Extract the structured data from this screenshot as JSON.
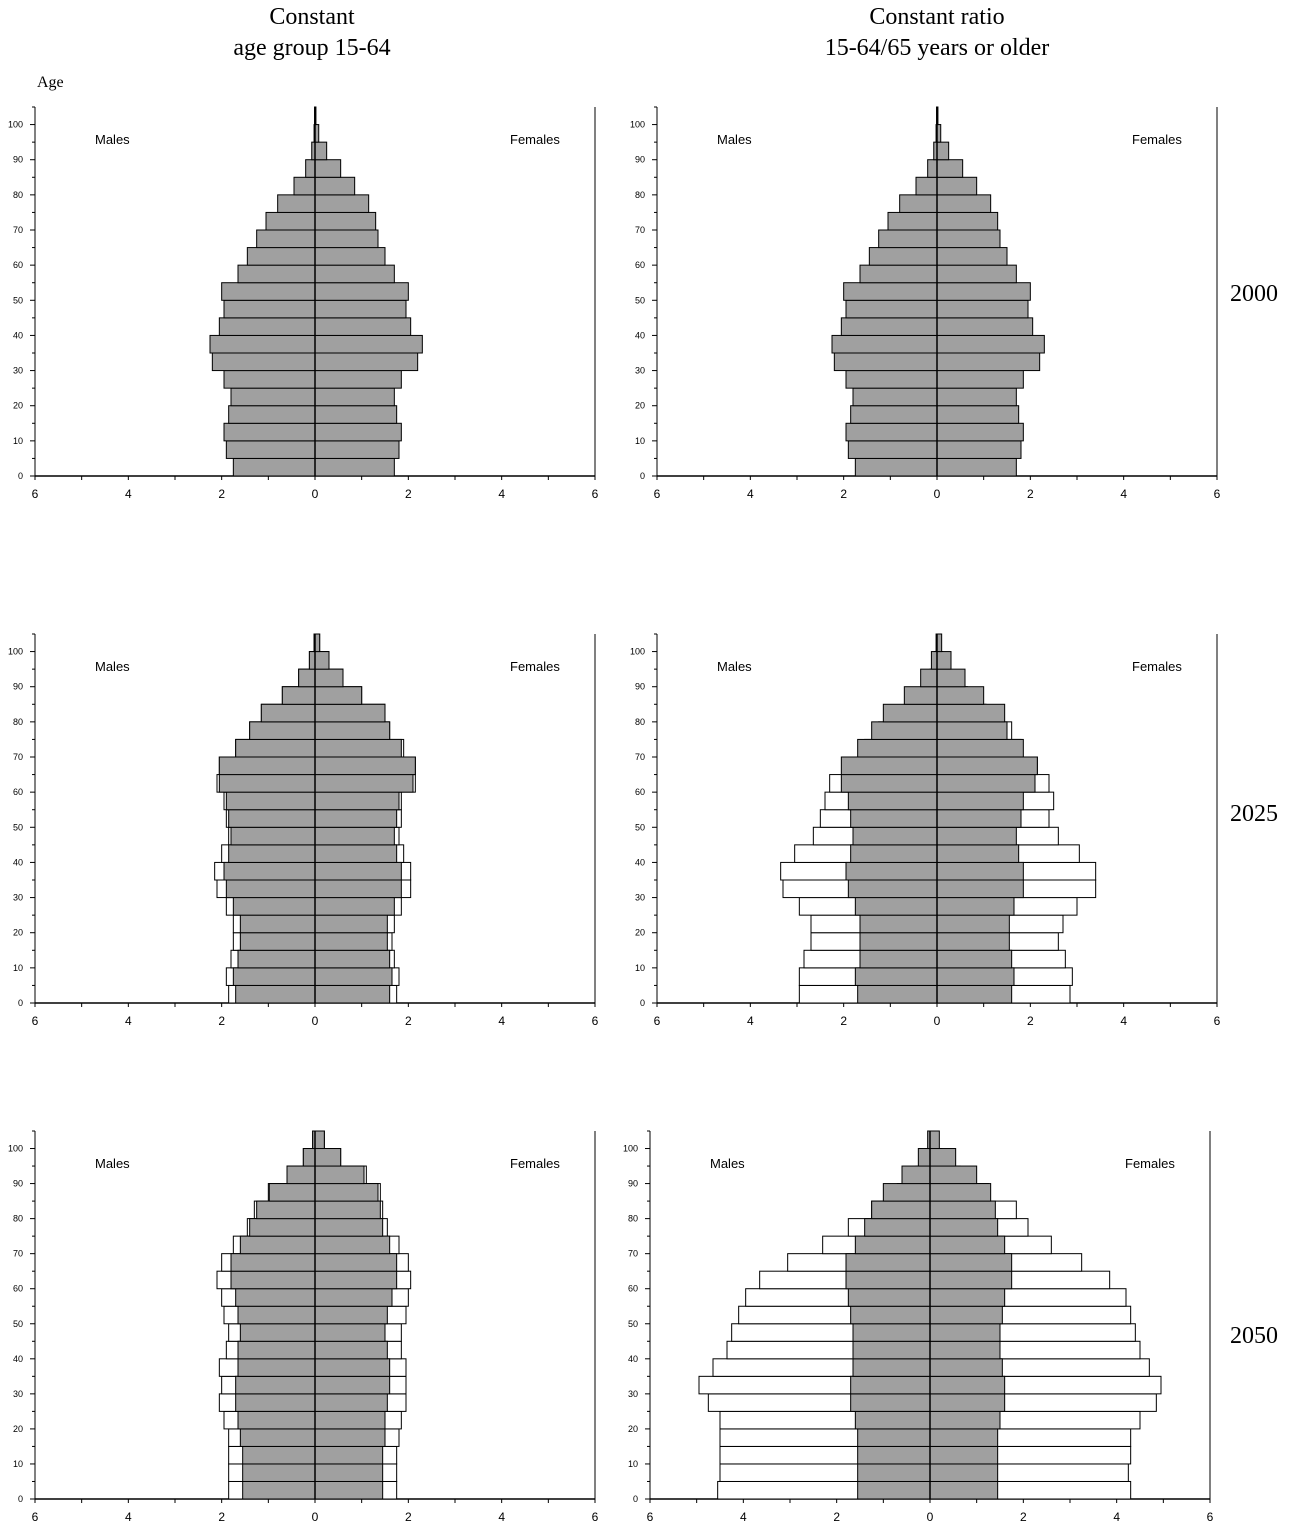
{
  "titles": {
    "left": [
      "Constant",
      "age group 15-64"
    ],
    "right": [
      "Constant ratio",
      "15-64/65 years or older"
    ],
    "age_axis": "Age"
  },
  "years": [
    "2000",
    "2025",
    "2050"
  ],
  "colors": {
    "baseline_fill": "#a0a0a0",
    "projection_fill": "#ffffff",
    "stroke": "#000000"
  },
  "chart_data": [
    {
      "type": "bar",
      "orientation": "horizontal",
      "scenario": "Constant age group 15-64",
      "year": "2000",
      "left_label": "Males",
      "right_label": "Females",
      "age_groups": [
        0,
        5,
        10,
        15,
        20,
        25,
        30,
        35,
        40,
        45,
        50,
        55,
        60,
        65,
        70,
        75,
        80,
        85,
        90,
        95,
        100
      ],
      "x_ticks": [
        "6",
        "4",
        "2",
        "0",
        "2",
        "4",
        "6"
      ],
      "xlim": [
        -6,
        6
      ],
      "y_ticks": [
        "0",
        "10",
        "20",
        "30",
        "40",
        "50",
        "60",
        "70",
        "80",
        "90",
        "100"
      ],
      "ylim": [
        0,
        105
      ],
      "series": [
        {
          "males": [
            1.75,
            1.9,
            1.95,
            1.85,
            1.8,
            1.95,
            2.2,
            2.25,
            2.05,
            1.95,
            2.0,
            1.65,
            1.45,
            1.25,
            1.05,
            0.8,
            0.45,
            0.2,
            0.07,
            0.02,
            0.01
          ],
          "females": [
            1.7,
            1.8,
            1.85,
            1.75,
            1.7,
            1.85,
            2.2,
            2.3,
            2.05,
            1.95,
            2.0,
            1.7,
            1.5,
            1.35,
            1.3,
            1.15,
            0.85,
            0.55,
            0.25,
            0.08,
            0.02
          ]
        }
      ]
    },
    {
      "type": "bar",
      "orientation": "horizontal",
      "scenario": "Constant ratio 15-64/65 years or older",
      "year": "2000",
      "left_label": "Males",
      "right_label": "Females",
      "age_groups": [
        0,
        5,
        10,
        15,
        20,
        25,
        30,
        35,
        40,
        45,
        50,
        55,
        60,
        65,
        70,
        75,
        80,
        85,
        90,
        95,
        100
      ],
      "x_ticks": [
        "6",
        "4",
        "2",
        "0",
        "2",
        "4",
        "6"
      ],
      "xlim": [
        -6,
        6
      ],
      "y_ticks": [
        "0",
        "10",
        "20",
        "30",
        "40",
        "50",
        "60",
        "70",
        "80",
        "90",
        "100"
      ],
      "ylim": [
        0,
        105
      ],
      "series": [
        {
          "males": [
            1.75,
            1.9,
            1.95,
            1.85,
            1.8,
            1.95,
            2.2,
            2.25,
            2.05,
            1.95,
            2.0,
            1.65,
            1.45,
            1.25,
            1.05,
            0.8,
            0.45,
            0.2,
            0.07,
            0.02,
            0.01
          ],
          "females": [
            1.7,
            1.8,
            1.85,
            1.75,
            1.7,
            1.85,
            2.2,
            2.3,
            2.05,
            1.95,
            2.0,
            1.7,
            1.5,
            1.35,
            1.3,
            1.15,
            0.85,
            0.55,
            0.25,
            0.08,
            0.02
          ]
        }
      ]
    },
    {
      "type": "bar",
      "orientation": "horizontal",
      "scenario": "Constant age group 15-64",
      "year": "2025",
      "left_label": "Males",
      "right_label": "Females",
      "age_groups": [
        0,
        5,
        10,
        15,
        20,
        25,
        30,
        35,
        40,
        45,
        50,
        55,
        60,
        65,
        70,
        75,
        80,
        85,
        90,
        95,
        100
      ],
      "x_ticks": [
        "6",
        "4",
        "2",
        "0",
        "2",
        "4",
        "6"
      ],
      "xlim": [
        -6,
        6
      ],
      "y_ticks": [
        "0",
        "10",
        "20",
        "30",
        "40",
        "50",
        "60",
        "70",
        "80",
        "90",
        "100"
      ],
      "ylim": [
        0,
        105
      ],
      "series": [
        {
          "males": [
            1.85,
            1.9,
            1.8,
            1.75,
            1.75,
            1.9,
            2.1,
            2.15,
            2.0,
            1.85,
            1.9,
            1.95,
            2.1,
            2.05,
            1.7,
            1.4,
            1.15,
            0.7,
            0.35,
            0.12,
            0.02
          ],
          "females": [
            1.75,
            1.8,
            1.7,
            1.65,
            1.7,
            1.85,
            2.05,
            2.05,
            1.9,
            1.8,
            1.85,
            1.85,
            2.15,
            2.15,
            1.9,
            1.6,
            1.5,
            1.0,
            0.6,
            0.3,
            0.1
          ]
        },
        {
          "males": [
            1.7,
            1.75,
            1.65,
            1.6,
            1.6,
            1.75,
            1.9,
            1.95,
            1.85,
            1.8,
            1.85,
            1.9,
            2.05,
            2.05,
            1.7,
            1.4,
            1.15,
            0.7,
            0.35,
            0.12,
            0.02
          ],
          "females": [
            1.6,
            1.65,
            1.6,
            1.55,
            1.55,
            1.7,
            1.85,
            1.85,
            1.75,
            1.7,
            1.75,
            1.8,
            2.1,
            2.15,
            1.85,
            1.6,
            1.5,
            1.0,
            0.6,
            0.3,
            0.1
          ]
        }
      ]
    },
    {
      "type": "bar",
      "orientation": "horizontal",
      "scenario": "Constant ratio 15-64/65 years or older",
      "year": "2025",
      "left_label": "Males",
      "right_label": "Females",
      "age_groups": [
        0,
        5,
        10,
        15,
        20,
        25,
        30,
        35,
        40,
        45,
        50,
        55,
        60,
        65,
        70,
        75,
        80,
        85,
        90,
        95,
        100
      ],
      "x_ticks": [
        "6",
        "4",
        "2",
        "0",
        "2",
        "4",
        "6"
      ],
      "xlim": [
        -6,
        6
      ],
      "y_ticks": [
        "0",
        "10",
        "20",
        "30",
        "40",
        "50",
        "60",
        "70",
        "80",
        "90",
        "100"
      ],
      "ylim": [
        0,
        105
      ],
      "series": [
        {
          "males": [
            2.95,
            2.95,
            2.85,
            2.7,
            2.7,
            2.95,
            3.3,
            3.35,
            3.05,
            2.65,
            2.5,
            2.4,
            2.3,
            1.9,
            1.55,
            1.25,
            0.7,
            0.35,
            0.15,
            0.05,
            0.01
          ],
          "females": [
            2.85,
            2.9,
            2.75,
            2.6,
            2.7,
            3.0,
            3.4,
            3.4,
            3.05,
            2.6,
            2.4,
            2.5,
            2.4,
            2.15,
            1.8,
            1.6,
            1.05,
            0.65,
            0.3,
            0.12,
            0.02
          ]
        },
        {
          "males": [
            1.7,
            1.75,
            1.65,
            1.65,
            1.65,
            1.75,
            1.9,
            1.95,
            1.85,
            1.8,
            1.85,
            1.9,
            2.05,
            2.05,
            1.7,
            1.4,
            1.15,
            0.7,
            0.35,
            0.12,
            0.02
          ],
          "females": [
            1.6,
            1.65,
            1.6,
            1.55,
            1.55,
            1.65,
            1.85,
            1.85,
            1.75,
            1.7,
            1.8,
            1.85,
            2.1,
            2.15,
            1.85,
            1.5,
            1.45,
            1.0,
            0.6,
            0.3,
            0.1
          ]
        }
      ]
    },
    {
      "type": "bar",
      "orientation": "horizontal",
      "scenario": "Constant age group 15-64",
      "year": "2050",
      "left_label": "Males",
      "right_label": "Females",
      "age_groups": [
        0,
        5,
        10,
        15,
        20,
        25,
        30,
        35,
        40,
        45,
        50,
        55,
        60,
        65,
        70,
        75,
        80,
        85,
        90,
        95,
        100
      ],
      "x_ticks": [
        "6",
        "4",
        "2",
        "0",
        "2",
        "4",
        "6"
      ],
      "xlim": [
        -6,
        6
      ],
      "y_ticks": [
        "0",
        "10",
        "20",
        "30",
        "40",
        "50",
        "60",
        "70",
        "80",
        "90",
        "100"
      ],
      "ylim": [
        0,
        105
      ],
      "series": [
        {
          "males": [
            1.85,
            1.85,
            1.85,
            1.85,
            1.95,
            2.05,
            2.0,
            2.05,
            1.9,
            1.85,
            1.95,
            2.0,
            2.1,
            2.0,
            1.75,
            1.45,
            1.3,
            1.0,
            0.6,
            0.25,
            0.05
          ],
          "females": [
            1.75,
            1.75,
            1.75,
            1.8,
            1.85,
            1.95,
            1.95,
            1.95,
            1.85,
            1.85,
            1.95,
            2.0,
            2.05,
            2.0,
            1.8,
            1.55,
            1.45,
            1.4,
            1.1,
            0.55,
            0.2
          ]
        },
        {
          "males": [
            1.55,
            1.55,
            1.55,
            1.6,
            1.65,
            1.7,
            1.7,
            1.65,
            1.65,
            1.6,
            1.65,
            1.7,
            1.8,
            1.8,
            1.6,
            1.4,
            1.25,
            0.98,
            0.6,
            0.25,
            0.05
          ],
          "females": [
            1.45,
            1.45,
            1.45,
            1.5,
            1.5,
            1.55,
            1.6,
            1.6,
            1.55,
            1.5,
            1.55,
            1.65,
            1.75,
            1.75,
            1.6,
            1.45,
            1.4,
            1.35,
            1.05,
            0.55,
            0.2
          ]
        }
      ]
    },
    {
      "type": "bar",
      "orientation": "horizontal",
      "scenario": "Constant ratio 15-64/65 years or older",
      "year": "2050",
      "left_label": "Males",
      "right_label": "Females",
      "age_groups": [
        0,
        5,
        10,
        15,
        20,
        25,
        30,
        35,
        40,
        45,
        50,
        55,
        60,
        65,
        70,
        75,
        80,
        85,
        90,
        95,
        100
      ],
      "x_ticks": [
        "6",
        "4",
        "2",
        "0",
        "2",
        "4",
        "6"
      ],
      "xlim": [
        -6,
        6
      ],
      "y_ticks": [
        "0",
        "10",
        "20",
        "30",
        "40",
        "50",
        "60",
        "70",
        "80",
        "90",
        "100"
      ],
      "ylim": [
        0,
        105
      ],
      "series": [
        {
          "males": [
            4.55,
            4.5,
            4.5,
            4.5,
            4.5,
            4.75,
            4.95,
            4.65,
            4.35,
            4.25,
            4.1,
            3.95,
            3.65,
            3.05,
            2.3,
            1.75,
            1.25,
            0.7,
            0.3,
            0.1,
            0.02
          ],
          "females": [
            4.3,
            4.25,
            4.3,
            4.3,
            4.5,
            4.85,
            4.95,
            4.7,
            4.5,
            4.4,
            4.3,
            4.2,
            3.85,
            3.25,
            2.6,
            2.1,
            1.85,
            1.25,
            0.65,
            0.25,
            0.05
          ]
        },
        {
          "males": [
            1.55,
            1.55,
            1.55,
            1.55,
            1.6,
            1.7,
            1.7,
            1.65,
            1.65,
            1.65,
            1.7,
            1.75,
            1.8,
            1.8,
            1.6,
            1.4,
            1.25,
            1.0,
            0.6,
            0.25,
            0.05
          ],
          "females": [
            1.45,
            1.45,
            1.45,
            1.45,
            1.5,
            1.6,
            1.6,
            1.55,
            1.5,
            1.5,
            1.55,
            1.6,
            1.75,
            1.75,
            1.6,
            1.45,
            1.4,
            1.3,
            1.0,
            0.55,
            0.2
          ]
        }
      ]
    }
  ]
}
